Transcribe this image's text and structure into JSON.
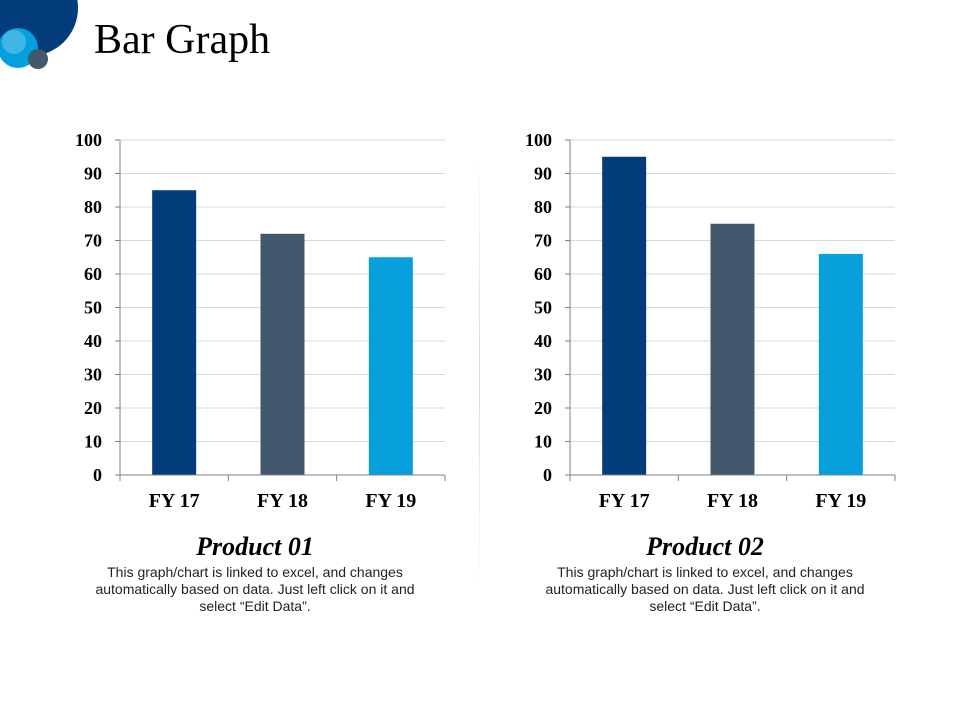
{
  "slide": {
    "title": "Bar Graph"
  },
  "chart_data": [
    {
      "type": "bar",
      "categories": [
        "FY 17",
        "FY 18",
        "FY 19"
      ],
      "values": [
        85,
        72,
        65
      ],
      "title": "",
      "xlabel": "",
      "ylabel": "",
      "ylim": [
        0,
        100
      ],
      "yticks": [
        "0",
        "10",
        "20",
        "30",
        "40",
        "50",
        "60",
        "70",
        "80",
        "90",
        "100"
      ],
      "grid": true,
      "bar_colors": [
        "#033c7a",
        "#41586d",
        "#05a0dc"
      ],
      "caption_title": "Product 01",
      "caption_text": "This graph/chart is linked to excel, and changes automatically based on data. Just left click on it and select “Edit Data”."
    },
    {
      "type": "bar",
      "categories": [
        "FY 17",
        "FY 18",
        "FY 19"
      ],
      "values": [
        95,
        75,
        66
      ],
      "title": "",
      "xlabel": "",
      "ylabel": "",
      "ylim": [
        0,
        100
      ],
      "yticks": [
        "0",
        "10",
        "20",
        "30",
        "40",
        "50",
        "60",
        "70",
        "80",
        "90",
        "100"
      ],
      "grid": true,
      "bar_colors": [
        "#033c7a",
        "#41586d",
        "#05a0dc"
      ],
      "caption_title": "Product 02",
      "caption_text": "This graph/chart is linked to excel, and changes automatically based on data. Just left click on it and select “Edit Data”."
    }
  ],
  "decoration": {
    "colors": {
      "navy": "#033c7a",
      "blue": "#05a0dc",
      "slate": "#41586d",
      "light": "#6fc8ef"
    }
  }
}
